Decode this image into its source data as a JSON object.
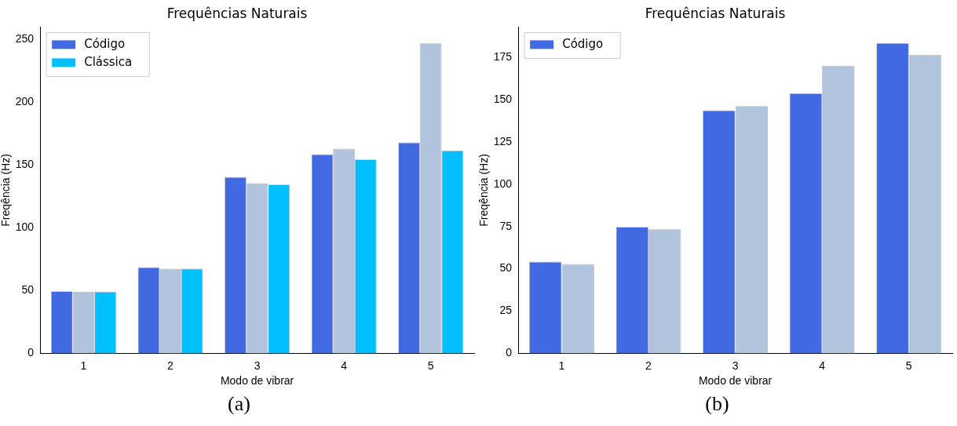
{
  "chart_data": [
    {
      "type": "bar",
      "title": "Frequências Naturais",
      "xlabel": "Modo de vibrar",
      "ylabel": "Freqência (Hz)",
      "categories": [
        "1",
        "2",
        "3",
        "4",
        "5"
      ],
      "series": [
        {
          "name": "Código",
          "color": "#4169e1",
          "values": [
            49.5,
            68.5,
            140.5,
            158.5,
            168
          ]
        },
        {
          "color": "#b0c4de",
          "values": [
            49,
            67.5,
            135.5,
            163,
            247
          ]
        },
        {
          "name": "Clássica",
          "color": "#00bfff",
          "values": [
            49,
            67.5,
            134.5,
            154.5,
            161.5
          ]
        }
      ],
      "ylim": [
        0,
        260
      ],
      "yticks": [
        0,
        50,
        100,
        150,
        200,
        250
      ],
      "legend": "top left",
      "annotations": [
        "(a)"
      ]
    },
    {
      "type": "bar",
      "title": "Frequências Naturais",
      "xlabel": "Modo de vibrar",
      "ylabel": "Freqência (Hz)",
      "categories": [
        "1",
        "2",
        "3",
        "4",
        "5"
      ],
      "series": [
        {
          "name": "Código",
          "color": "#4169e1",
          "values": [
            54.2,
            74.8,
            143.7,
            153.8,
            183.5
          ]
        },
        {
          "color": "#b0c4de",
          "values": [
            52.8,
            73.4,
            146.2,
            170,
            176.5
          ]
        }
      ],
      "ylim": [
        0,
        193
      ],
      "yticks": [
        0,
        25,
        50,
        75,
        100,
        125,
        150,
        175
      ],
      "legend": "top left",
      "annotations": [
        "(b)"
      ]
    }
  ]
}
